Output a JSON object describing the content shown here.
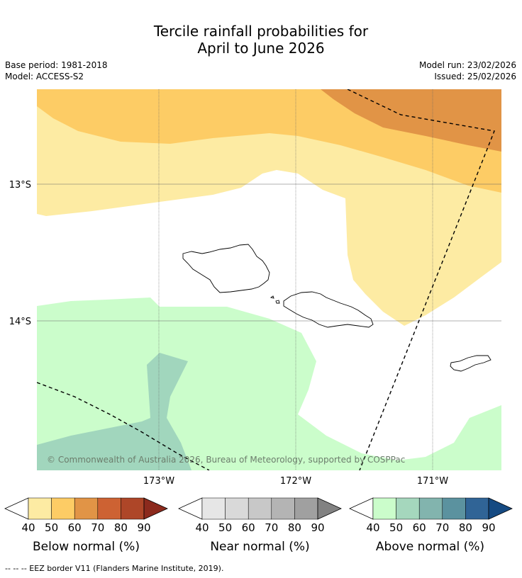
{
  "title": {
    "line1": "Tercile rainfall probabilities for",
    "line2": "April to June 2026"
  },
  "meta": {
    "base_period": "Base period: 1981-2018",
    "model": "Model: ACCESS-S2",
    "model_run": "Model run: 23/02/2026",
    "issued": "Issued: 25/02/2026"
  },
  "map": {
    "lat_labels": [
      "13°S",
      "14°S"
    ],
    "lon_labels": [
      "173°W",
      "172°W",
      "171°W"
    ],
    "copyright": "© Commonwealth of Australia 2026, Bureau of Meteorology, supported by COSPPac",
    "colors": {
      "below_40": "#fdeba3",
      "below_50": "#fdcc65",
      "below_60": "#e19446",
      "above_40": "#cbfdcb",
      "above_50": "#a1d6bd",
      "land_outline": "#000000",
      "background": "#ffffff"
    }
  },
  "colorbars": [
    {
      "label": "Below normal (%)",
      "ticks": [
        "40",
        "50",
        "60",
        "70",
        "80",
        "90"
      ],
      "colors": [
        "#fdeba3",
        "#fdcc65",
        "#e19446",
        "#cd6233",
        "#ae4628",
        "#8c2a1d"
      ]
    },
    {
      "label": "Near normal (%)",
      "ticks": [
        "40",
        "50",
        "60",
        "70",
        "80",
        "90"
      ],
      "colors": [
        "#e6e6e6",
        "#d9d9d9",
        "#c8c8c8",
        "#b4b4b4",
        "#a0a0a0",
        "#828282"
      ]
    },
    {
      "label": "Above normal (%)",
      "ticks": [
        "40",
        "50",
        "60",
        "70",
        "80",
        "90"
      ],
      "colors": [
        "#cbfdcb",
        "#a5d7bd",
        "#82b4ae",
        "#5b929f",
        "#306496",
        "#154a82"
      ]
    }
  ],
  "footnote": "--  --  -- EEZ border V11 (Flanders Marine Institute, 2019)."
}
